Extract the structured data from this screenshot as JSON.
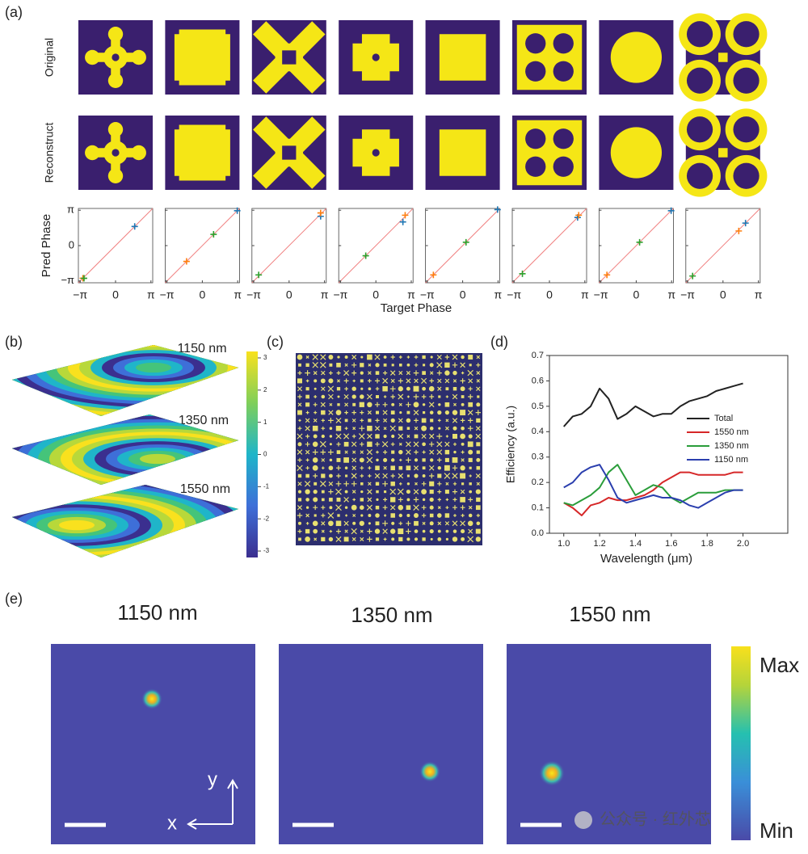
{
  "panel_labels": [
    "(a)",
    "(b)",
    "(c)",
    "(d)",
    "(e)"
  ],
  "panel_a": {
    "row_labels": [
      "Original",
      "Reconstruct"
    ],
    "ylabel": "Pred Phase",
    "xlabel": "Target Phase",
    "lim": [
      -3.3,
      3.3
    ],
    "ticks": [
      {
        "value": -3.1416,
        "label": "−π"
      },
      0,
      {
        "value": 3.1416,
        "label": "π"
      }
    ],
    "diagonal_color": "#f08080",
    "point_colors": [
      "#1f77b4",
      "#ff7f0e",
      "#2ca02c"
    ],
    "plots": [
      {
        "x": [
          1.7,
          -2.9,
          -2.8
        ],
        "y": [
          1.7,
          -2.9,
          -2.9
        ]
      },
      {
        "x": [
          3.1,
          -1.4,
          1.0
        ],
        "y": [
          3.1,
          -1.4,
          1.0
        ]
      },
      {
        "x": [
          2.8,
          2.8,
          -2.7
        ],
        "y": [
          2.6,
          2.9,
          -2.6
        ]
      },
      {
        "x": [
          2.4,
          2.6,
          -0.9
        ],
        "y": [
          2.1,
          2.7,
          -0.9
        ]
      },
      {
        "x": [
          3.1,
          -2.6,
          0.3
        ],
        "y": [
          3.2,
          -2.6,
          0.3
        ]
      },
      {
        "x": [
          2.5,
          2.6,
          -2.4
        ],
        "y": [
          2.5,
          2.7,
          -2.5
        ]
      },
      {
        "x": [
          3.1,
          -2.6,
          0.3
        ],
        "y": [
          3.1,
          -2.6,
          0.3
        ]
      },
      {
        "x": [
          2.0,
          1.4,
          -2.7
        ],
        "y": [
          2.0,
          1.3,
          -2.7
        ]
      }
    ]
  },
  "panel_b": {
    "wavelengths": [
      "1150 nm",
      "1350 nm",
      "1550 nm"
    ],
    "colorbar_lim": [
      -3.2,
      3.2
    ],
    "colorbar_ticks": [
      3,
      2,
      1,
      0,
      -1,
      -2,
      -3
    ]
  },
  "panel_e": {
    "wavelengths": [
      "1150 nm",
      "1350 nm",
      "1550 nm"
    ],
    "colorbar_labels": [
      "Max",
      "Min"
    ],
    "axis_labels": [
      "y",
      "x"
    ]
  },
  "watermark": "公众号 · 红外芯",
  "chart_data": {
    "type": "line",
    "xlabel": "Wavelength (μm)",
    "ylabel": "Efficiency (a.u.)",
    "x": [
      1.0,
      1.05,
      1.1,
      1.15,
      1.2,
      1.25,
      1.3,
      1.35,
      1.4,
      1.45,
      1.5,
      1.55,
      1.6,
      1.65,
      1.7,
      1.75,
      1.8,
      1.85,
      1.9,
      1.95,
      2.0
    ],
    "xlim": [
      0.92,
      2.25
    ],
    "ylim": [
      0,
      0.7
    ],
    "xticks": [
      {
        "value": 1,
        "label": "1.0"
      },
      1.2,
      1.4,
      1.6,
      1.8,
      {
        "value": 2,
        "label": "2.0"
      }
    ],
    "yticks": [
      {
        "value": 0,
        "label": "0.0"
      },
      0.1,
      0.2,
      0.3,
      0.4,
      0.5,
      0.6,
      0.7
    ],
    "legend": "right",
    "series": [
      {
        "name": "Total",
        "color": "#222222",
        "values": [
          0.42,
          0.46,
          0.47,
          0.5,
          0.57,
          0.53,
          0.45,
          0.47,
          0.5,
          0.48,
          0.46,
          0.47,
          0.47,
          0.5,
          0.52,
          0.53,
          0.54,
          0.56,
          0.57,
          0.58,
          0.59
        ]
      },
      {
        "name": "1550 nm",
        "color": "#d62728",
        "values": [
          0.12,
          0.1,
          0.07,
          0.11,
          0.12,
          0.14,
          0.13,
          0.13,
          0.14,
          0.15,
          0.17,
          0.2,
          0.22,
          0.24,
          0.24,
          0.23,
          0.23,
          0.23,
          0.23,
          0.24,
          0.24
        ]
      },
      {
        "name": "1350 nm",
        "color": "#2a9d3a",
        "values": [
          0.12,
          0.11,
          0.13,
          0.15,
          0.18,
          0.24,
          0.27,
          0.21,
          0.15,
          0.17,
          0.19,
          0.18,
          0.14,
          0.12,
          0.14,
          0.16,
          0.16,
          0.16,
          0.17,
          0.17,
          0.17
        ]
      },
      {
        "name": "1150 nm",
        "color": "#2b3fae",
        "values": [
          0.18,
          0.2,
          0.24,
          0.26,
          0.27,
          0.21,
          0.14,
          0.12,
          0.13,
          0.14,
          0.15,
          0.14,
          0.14,
          0.13,
          0.11,
          0.1,
          0.12,
          0.14,
          0.16,
          0.17,
          0.17
        ]
      }
    ]
  }
}
